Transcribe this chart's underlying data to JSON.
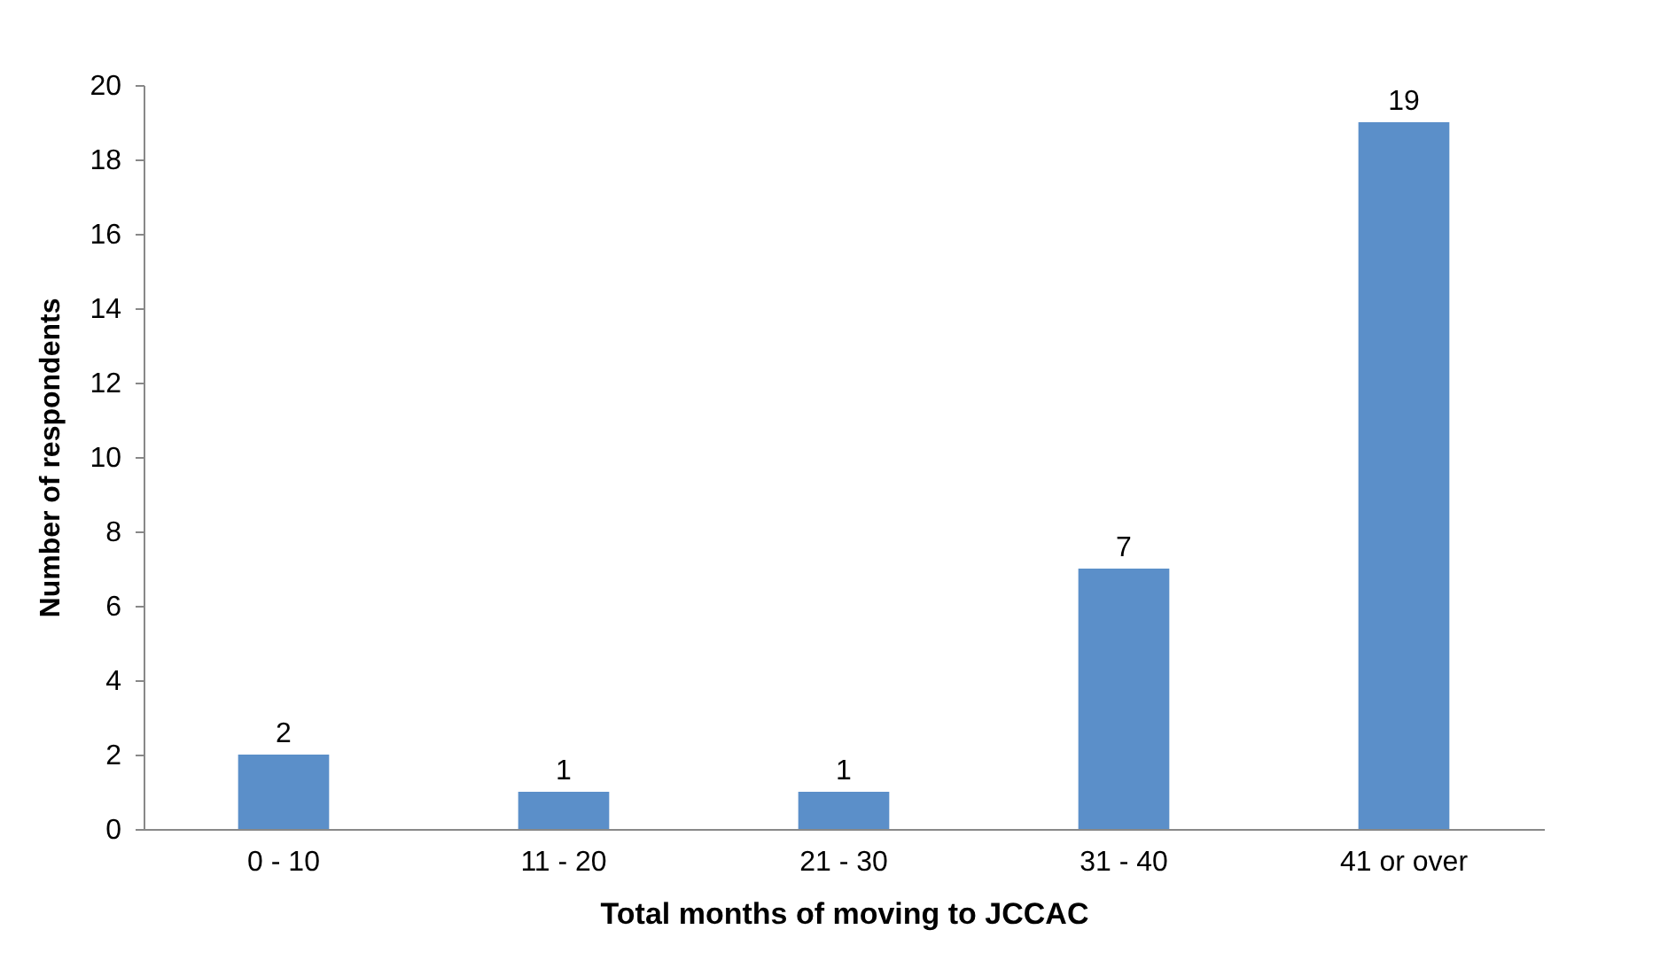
{
  "chart_data": {
    "type": "bar",
    "xlabel": "Total months of moving to JCCAC",
    "ylabel": "Number of respondents",
    "categories": [
      "0 - 10",
      "11 - 20",
      "21 - 30",
      "31 - 40",
      "41 or over"
    ],
    "values": [
      2,
      1,
      1,
      7,
      19
    ],
    "color": "#5b8fc9",
    "ylim": [
      0,
      20
    ],
    "yticks": [
      0,
      2,
      4,
      6,
      8,
      10,
      12,
      14,
      16,
      18,
      20
    ],
    "data_labels": true
  }
}
